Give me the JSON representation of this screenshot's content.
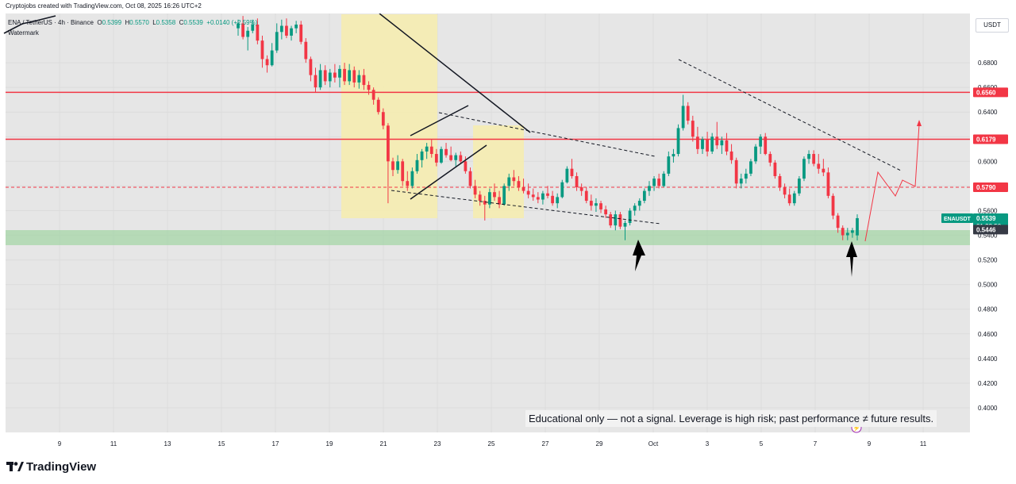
{
  "header": {
    "caption": "Cryptojobs created with TradingView.com, Oct 08, 2025 16:26 UTC+2",
    "symbol_line": "ENA / TetherUS · 4h · Binance",
    "ohlc": {
      "o_label": "O",
      "o": "0.5399",
      "h_label": "H",
      "h": "0.5570",
      "l_label": "L",
      "l": "0.5358",
      "c_label": "C",
      "c": "0.5539",
      "change": "+0.0140 (+2.59%)"
    },
    "watermark": "Watermark",
    "currency_button": "USDT"
  },
  "disclaimer": "Educational only — not a signal. Leverage is high risk; past performance ≠ future results.",
  "footer": {
    "brand": "TradingView"
  },
  "price_labels": {
    "ticker": "ENAUSDT",
    "last": "0.5539",
    "countdown": "01:33:50",
    "prev": "0.5446",
    "resistance_high": "0.6560",
    "resistance_mid": "0.6179",
    "dashed_level": "0.5790"
  },
  "colors": {
    "up": "#089981",
    "down": "#f23645",
    "resistance": "#f23645",
    "support_zone": "#a5d6a7",
    "highlight_zone": "#f5ecb0",
    "chart_bg": "#e6e6e6"
  },
  "chart_data": {
    "type": "candlestick",
    "title": "ENA / TetherUS · 4h · Binance",
    "xlabel": "",
    "ylabel": "",
    "ylim": [
      0.38,
      0.72
    ],
    "y_ticks": [
      "0.6800",
      "0.6600",
      "0.6400",
      "0.6200",
      "0.6000",
      "0.5800",
      "0.5600",
      "0.5400",
      "0.5200",
      "0.5000",
      "0.4800",
      "0.4600",
      "0.4400",
      "0.4200",
      "0.4000"
    ],
    "x_ticks": [
      "9",
      "11",
      "13",
      "15",
      "17",
      "19",
      "21",
      "23",
      "25",
      "27",
      "29",
      "Oct",
      "3",
      "5",
      "7",
      "9",
      "11"
    ],
    "horizontal_levels": [
      {
        "value": 0.656,
        "style": "solid"
      },
      {
        "value": 0.6179,
        "style": "solid"
      },
      {
        "value": 0.579,
        "style": "dashed"
      }
    ],
    "support_zone": [
      0.525,
      0.537
    ],
    "grid": true,
    "legend": "none",
    "candles": [
      {
        "o": 0.708,
        "h": 0.715,
        "l": 0.702,
        "c": 0.712
      },
      {
        "o": 0.712,
        "h": 0.718,
        "l": 0.699,
        "c": 0.701
      },
      {
        "o": 0.701,
        "h": 0.709,
        "l": 0.69,
        "c": 0.706
      },
      {
        "o": 0.706,
        "h": 0.715,
        "l": 0.704,
        "c": 0.711
      },
      {
        "o": 0.711,
        "h": 0.716,
        "l": 0.695,
        "c": 0.698
      },
      {
        "o": 0.698,
        "h": 0.702,
        "l": 0.676,
        "c": 0.683
      },
      {
        "o": 0.683,
        "h": 0.686,
        "l": 0.672,
        "c": 0.678
      },
      {
        "o": 0.678,
        "h": 0.696,
        "l": 0.677,
        "c": 0.69
      },
      {
        "o": 0.69,
        "h": 0.712,
        "l": 0.688,
        "c": 0.705
      },
      {
        "o": 0.705,
        "h": 0.715,
        "l": 0.699,
        "c": 0.71
      },
      {
        "o": 0.71,
        "h": 0.716,
        "l": 0.7,
        "c": 0.702
      },
      {
        "o": 0.702,
        "h": 0.71,
        "l": 0.698,
        "c": 0.708
      },
      {
        "o": 0.708,
        "h": 0.714,
        "l": 0.704,
        "c": 0.711
      },
      {
        "o": 0.711,
        "h": 0.714,
        "l": 0.695,
        "c": 0.697
      },
      {
        "o": 0.697,
        "h": 0.7,
        "l": 0.68,
        "c": 0.683
      },
      {
        "o": 0.683,
        "h": 0.685,
        "l": 0.665,
        "c": 0.67
      },
      {
        "o": 0.67,
        "h": 0.676,
        "l": 0.656,
        "c": 0.66
      },
      {
        "o": 0.66,
        "h": 0.679,
        "l": 0.658,
        "c": 0.674
      },
      {
        "o": 0.674,
        "h": 0.678,
        "l": 0.662,
        "c": 0.665
      },
      {
        "o": 0.665,
        "h": 0.675,
        "l": 0.66,
        "c": 0.672
      },
      {
        "o": 0.672,
        "h": 0.679,
        "l": 0.664,
        "c": 0.668
      },
      {
        "o": 0.668,
        "h": 0.678,
        "l": 0.66,
        "c": 0.675
      },
      {
        "o": 0.675,
        "h": 0.68,
        "l": 0.662,
        "c": 0.665
      },
      {
        "o": 0.665,
        "h": 0.679,
        "l": 0.662,
        "c": 0.674
      },
      {
        "o": 0.674,
        "h": 0.677,
        "l": 0.66,
        "c": 0.664
      },
      {
        "o": 0.664,
        "h": 0.674,
        "l": 0.659,
        "c": 0.67
      },
      {
        "o": 0.67,
        "h": 0.675,
        "l": 0.658,
        "c": 0.662
      },
      {
        "o": 0.662,
        "h": 0.665,
        "l": 0.654,
        "c": 0.658
      },
      {
        "o": 0.658,
        "h": 0.66,
        "l": 0.646,
        "c": 0.65
      },
      {
        "o": 0.65,
        "h": 0.652,
        "l": 0.638,
        "c": 0.64
      },
      {
        "o": 0.64,
        "h": 0.643,
        "l": 0.626,
        "c": 0.629
      },
      {
        "o": 0.629,
        "h": 0.631,
        "l": 0.566,
        "c": 0.6
      },
      {
        "o": 0.6,
        "h": 0.603,
        "l": 0.588,
        "c": 0.593
      },
      {
        "o": 0.593,
        "h": 0.605,
        "l": 0.59,
        "c": 0.6
      },
      {
        "o": 0.6,
        "h": 0.602,
        "l": 0.58,
        "c": 0.584
      },
      {
        "o": 0.584,
        "h": 0.592,
        "l": 0.576,
        "c": 0.58
      },
      {
        "o": 0.58,
        "h": 0.595,
        "l": 0.578,
        "c": 0.592
      },
      {
        "o": 0.592,
        "h": 0.606,
        "l": 0.59,
        "c": 0.601
      },
      {
        "o": 0.601,
        "h": 0.61,
        "l": 0.595,
        "c": 0.608
      },
      {
        "o": 0.608,
        "h": 0.615,
        "l": 0.602,
        "c": 0.612
      },
      {
        "o": 0.612,
        "h": 0.618,
        "l": 0.603,
        "c": 0.606
      },
      {
        "o": 0.606,
        "h": 0.61,
        "l": 0.596,
        "c": 0.599
      },
      {
        "o": 0.599,
        "h": 0.612,
        "l": 0.598,
        "c": 0.61
      },
      {
        "o": 0.61,
        "h": 0.615,
        "l": 0.603,
        "c": 0.605
      },
      {
        "o": 0.605,
        "h": 0.612,
        "l": 0.6,
        "c": 0.601
      },
      {
        "o": 0.601,
        "h": 0.607,
        "l": 0.596,
        "c": 0.605
      },
      {
        "o": 0.605,
        "h": 0.608,
        "l": 0.598,
        "c": 0.6
      },
      {
        "o": 0.6,
        "h": 0.604,
        "l": 0.59,
        "c": 0.592
      },
      {
        "o": 0.592,
        "h": 0.595,
        "l": 0.578,
        "c": 0.58
      },
      {
        "o": 0.58,
        "h": 0.585,
        "l": 0.57,
        "c": 0.573
      },
      {
        "o": 0.573,
        "h": 0.576,
        "l": 0.564,
        "c": 0.568
      },
      {
        "o": 0.568,
        "h": 0.572,
        "l": 0.552,
        "c": 0.565
      },
      {
        "o": 0.565,
        "h": 0.578,
        "l": 0.562,
        "c": 0.575
      },
      {
        "o": 0.575,
        "h": 0.582,
        "l": 0.568,
        "c": 0.571
      },
      {
        "o": 0.571,
        "h": 0.576,
        "l": 0.562,
        "c": 0.565
      },
      {
        "o": 0.565,
        "h": 0.582,
        "l": 0.564,
        "c": 0.58
      },
      {
        "o": 0.58,
        "h": 0.59,
        "l": 0.576,
        "c": 0.587
      },
      {
        "o": 0.587,
        "h": 0.593,
        "l": 0.58,
        "c": 0.584
      },
      {
        "o": 0.584,
        "h": 0.588,
        "l": 0.576,
        "c": 0.579
      },
      {
        "o": 0.579,
        "h": 0.586,
        "l": 0.574,
        "c": 0.576
      },
      {
        "o": 0.576,
        "h": 0.582,
        "l": 0.57,
        "c": 0.573
      },
      {
        "o": 0.573,
        "h": 0.578,
        "l": 0.568,
        "c": 0.571
      },
      {
        "o": 0.571,
        "h": 0.575,
        "l": 0.566,
        "c": 0.569
      },
      {
        "o": 0.569,
        "h": 0.576,
        "l": 0.565,
        "c": 0.574
      },
      {
        "o": 0.574,
        "h": 0.58,
        "l": 0.57,
        "c": 0.572
      },
      {
        "o": 0.572,
        "h": 0.576,
        "l": 0.564,
        "c": 0.566
      },
      {
        "o": 0.566,
        "h": 0.574,
        "l": 0.562,
        "c": 0.571
      },
      {
        "o": 0.571,
        "h": 0.585,
        "l": 0.57,
        "c": 0.583
      },
      {
        "o": 0.583,
        "h": 0.596,
        "l": 0.582,
        "c": 0.594
      },
      {
        "o": 0.594,
        "h": 0.602,
        "l": 0.586,
        "c": 0.588
      },
      {
        "o": 0.588,
        "h": 0.591,
        "l": 0.576,
        "c": 0.579
      },
      {
        "o": 0.579,
        "h": 0.582,
        "l": 0.572,
        "c": 0.576
      },
      {
        "o": 0.576,
        "h": 0.579,
        "l": 0.566,
        "c": 0.568
      },
      {
        "o": 0.568,
        "h": 0.573,
        "l": 0.56,
        "c": 0.564
      },
      {
        "o": 0.564,
        "h": 0.57,
        "l": 0.559,
        "c": 0.566
      },
      {
        "o": 0.566,
        "h": 0.568,
        "l": 0.558,
        "c": 0.561
      },
      {
        "o": 0.561,
        "h": 0.564,
        "l": 0.554,
        "c": 0.557
      },
      {
        "o": 0.557,
        "h": 0.559,
        "l": 0.546,
        "c": 0.548
      },
      {
        "o": 0.548,
        "h": 0.56,
        "l": 0.544,
        "c": 0.557
      },
      {
        "o": 0.557,
        "h": 0.559,
        "l": 0.545,
        "c": 0.547
      },
      {
        "o": 0.547,
        "h": 0.552,
        "l": 0.536,
        "c": 0.55
      },
      {
        "o": 0.55,
        "h": 0.562,
        "l": 0.548,
        "c": 0.56
      },
      {
        "o": 0.56,
        "h": 0.566,
        "l": 0.556,
        "c": 0.564
      },
      {
        "o": 0.564,
        "h": 0.57,
        "l": 0.56,
        "c": 0.568
      },
      {
        "o": 0.568,
        "h": 0.578,
        "l": 0.566,
        "c": 0.576
      },
      {
        "o": 0.576,
        "h": 0.584,
        "l": 0.572,
        "c": 0.58
      },
      {
        "o": 0.58,
        "h": 0.588,
        "l": 0.576,
        "c": 0.586
      },
      {
        "o": 0.586,
        "h": 0.59,
        "l": 0.578,
        "c": 0.58
      },
      {
        "o": 0.58,
        "h": 0.592,
        "l": 0.579,
        "c": 0.59
      },
      {
        "o": 0.59,
        "h": 0.608,
        "l": 0.588,
        "c": 0.604
      },
      {
        "o": 0.604,
        "h": 0.61,
        "l": 0.599,
        "c": 0.606
      },
      {
        "o": 0.606,
        "h": 0.63,
        "l": 0.604,
        "c": 0.627
      },
      {
        "o": 0.627,
        "h": 0.654,
        "l": 0.625,
        "c": 0.645
      },
      {
        "o": 0.645,
        "h": 0.648,
        "l": 0.63,
        "c": 0.633
      },
      {
        "o": 0.633,
        "h": 0.637,
        "l": 0.616,
        "c": 0.62
      },
      {
        "o": 0.62,
        "h": 0.628,
        "l": 0.606,
        "c": 0.61
      },
      {
        "o": 0.61,
        "h": 0.62,
        "l": 0.606,
        "c": 0.618
      },
      {
        "o": 0.618,
        "h": 0.624,
        "l": 0.604,
        "c": 0.608
      },
      {
        "o": 0.608,
        "h": 0.623,
        "l": 0.606,
        "c": 0.62
      },
      {
        "o": 0.62,
        "h": 0.632,
        "l": 0.61,
        "c": 0.613
      },
      {
        "o": 0.613,
        "h": 0.62,
        "l": 0.606,
        "c": 0.617
      },
      {
        "o": 0.617,
        "h": 0.623,
        "l": 0.605,
        "c": 0.608
      },
      {
        "o": 0.608,
        "h": 0.614,
        "l": 0.598,
        "c": 0.601
      },
      {
        "o": 0.601,
        "h": 0.603,
        "l": 0.578,
        "c": 0.582
      },
      {
        "o": 0.582,
        "h": 0.59,
        "l": 0.578,
        "c": 0.586
      },
      {
        "o": 0.586,
        "h": 0.594,
        "l": 0.582,
        "c": 0.59
      },
      {
        "o": 0.59,
        "h": 0.602,
        "l": 0.588,
        "c": 0.6
      },
      {
        "o": 0.6,
        "h": 0.614,
        "l": 0.598,
        "c": 0.612
      },
      {
        "o": 0.612,
        "h": 0.622,
        "l": 0.606,
        "c": 0.62
      },
      {
        "o": 0.62,
        "h": 0.623,
        "l": 0.605,
        "c": 0.606
      },
      {
        "o": 0.606,
        "h": 0.608,
        "l": 0.596,
        "c": 0.599
      },
      {
        "o": 0.599,
        "h": 0.601,
        "l": 0.586,
        "c": 0.588
      },
      {
        "o": 0.588,
        "h": 0.59,
        "l": 0.576,
        "c": 0.579
      },
      {
        "o": 0.579,
        "h": 0.582,
        "l": 0.57,
        "c": 0.573
      },
      {
        "o": 0.573,
        "h": 0.578,
        "l": 0.564,
        "c": 0.566
      },
      {
        "o": 0.566,
        "h": 0.576,
        "l": 0.564,
        "c": 0.574
      },
      {
        "o": 0.574,
        "h": 0.588,
        "l": 0.572,
        "c": 0.586
      },
      {
        "o": 0.586,
        "h": 0.604,
        "l": 0.584,
        "c": 0.602
      },
      {
        "o": 0.602,
        "h": 0.609,
        "l": 0.598,
        "c": 0.606
      },
      {
        "o": 0.606,
        "h": 0.609,
        "l": 0.596,
        "c": 0.598
      },
      {
        "o": 0.598,
        "h": 0.606,
        "l": 0.59,
        "c": 0.594
      },
      {
        "o": 0.594,
        "h": 0.602,
        "l": 0.588,
        "c": 0.591
      },
      {
        "o": 0.591,
        "h": 0.595,
        "l": 0.57,
        "c": 0.572
      },
      {
        "o": 0.572,
        "h": 0.574,
        "l": 0.553,
        "c": 0.556
      },
      {
        "o": 0.556,
        "h": 0.558,
        "l": 0.542,
        "c": 0.546
      },
      {
        "o": 0.546,
        "h": 0.548,
        "l": 0.536,
        "c": 0.54
      },
      {
        "o": 0.54,
        "h": 0.546,
        "l": 0.536,
        "c": 0.542
      },
      {
        "o": 0.542,
        "h": 0.546,
        "l": 0.538,
        "c": 0.544
      },
      {
        "o": 0.5399,
        "h": 0.557,
        "l": 0.5358,
        "c": 0.5539
      }
    ],
    "annotations": [
      {
        "type": "rect",
        "label": "highlight",
        "x0": "Sep 19",
        "x1": "Sep 23"
      },
      {
        "type": "rect",
        "label": "highlight",
        "x0": "Sep 24",
        "x1": "Sep 26"
      },
      {
        "type": "trendline",
        "style": "dashed",
        "label": "descending resistance"
      },
      {
        "type": "trendline",
        "style": "dashed",
        "label": "lower channel"
      },
      {
        "type": "arrow",
        "label": "support bounce"
      },
      {
        "type": "arrow",
        "label": "support bounce"
      },
      {
        "type": "path",
        "label": "projected path"
      }
    ]
  }
}
